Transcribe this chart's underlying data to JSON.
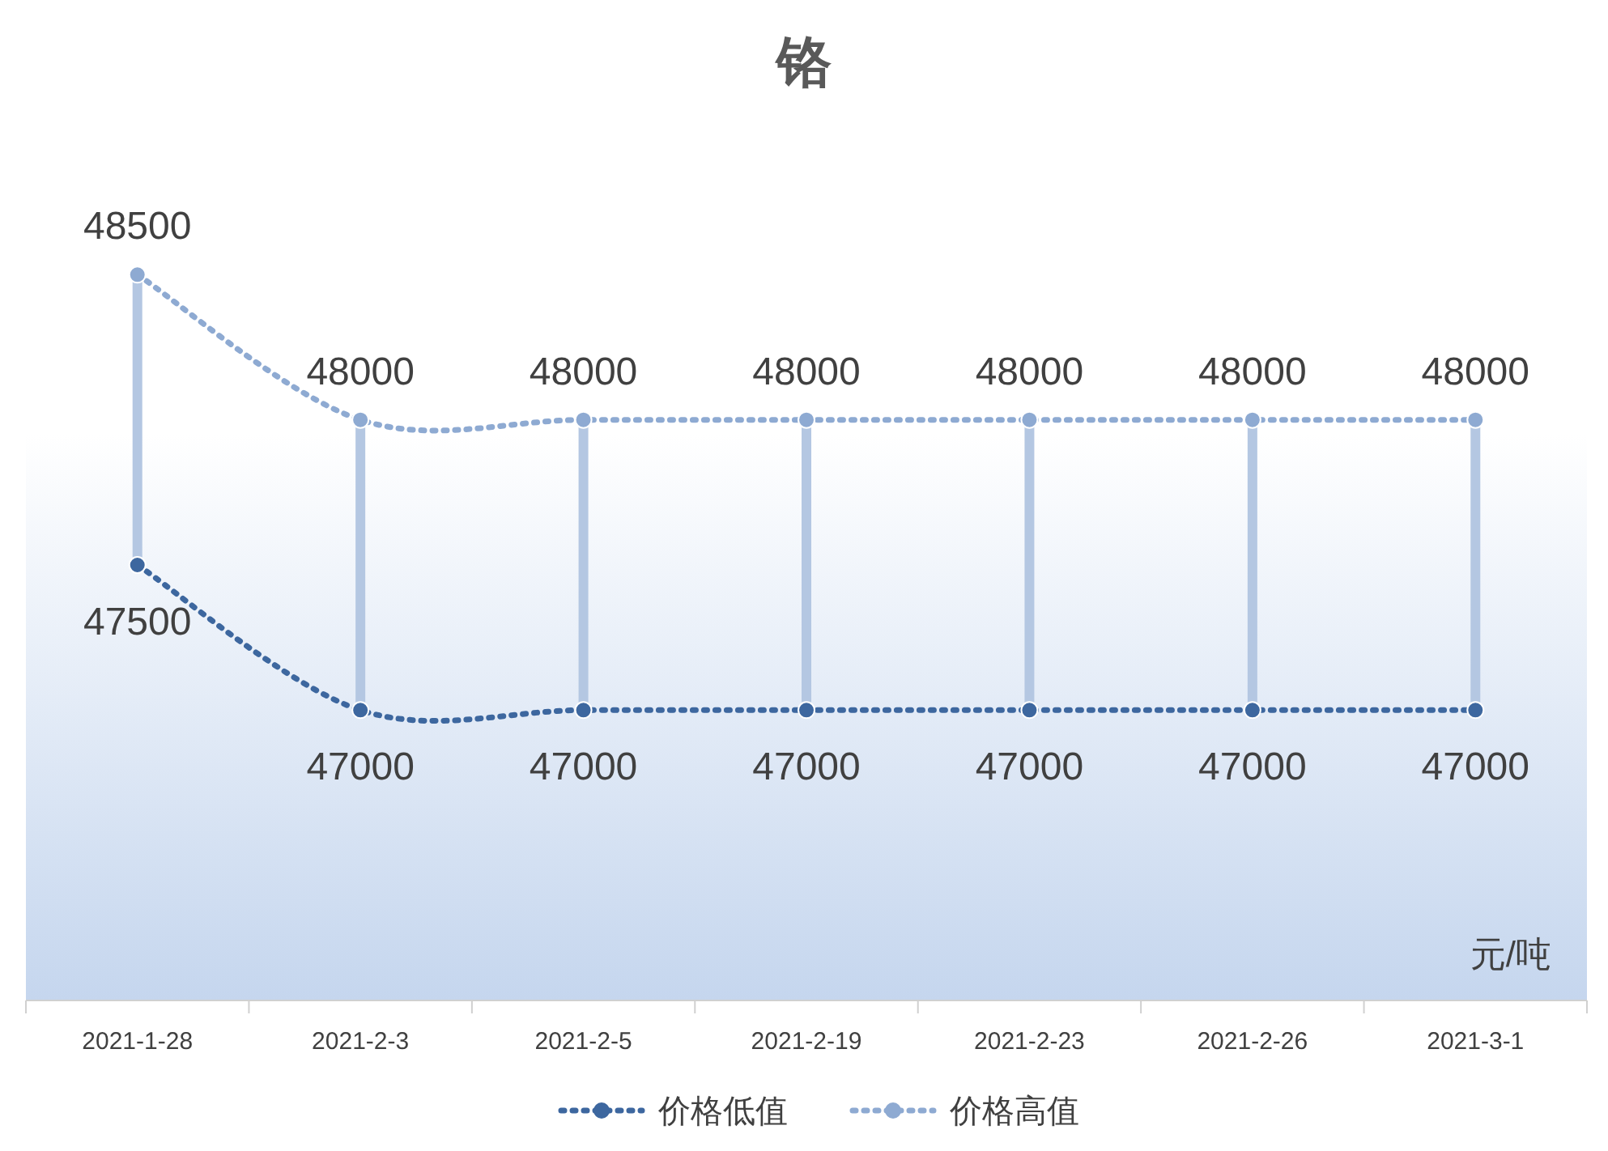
{
  "chart_data": {
    "type": "line",
    "title": "铬",
    "annotations": [
      "元/吨"
    ],
    "categories": [
      "2021-1-28",
      "2021-2-3",
      "2021-2-5",
      "2021-2-19",
      "2021-2-23",
      "2021-2-26",
      "2021-3-1"
    ],
    "series": [
      {
        "name": "价格低值",
        "color": "#3d679f",
        "values": [
          47500,
          47000,
          47000,
          47000,
          47000,
          47000,
          47000
        ]
      },
      {
        "name": "价格高值",
        "color": "#8eaad2",
        "values": [
          48500,
          48000,
          48000,
          48000,
          48000,
          48000,
          48000
        ]
      }
    ],
    "ylim": [
      46000,
      49000
    ],
    "data_labels": true,
    "legend": "bottom",
    "marker": "circle",
    "line_style": "dotted"
  }
}
